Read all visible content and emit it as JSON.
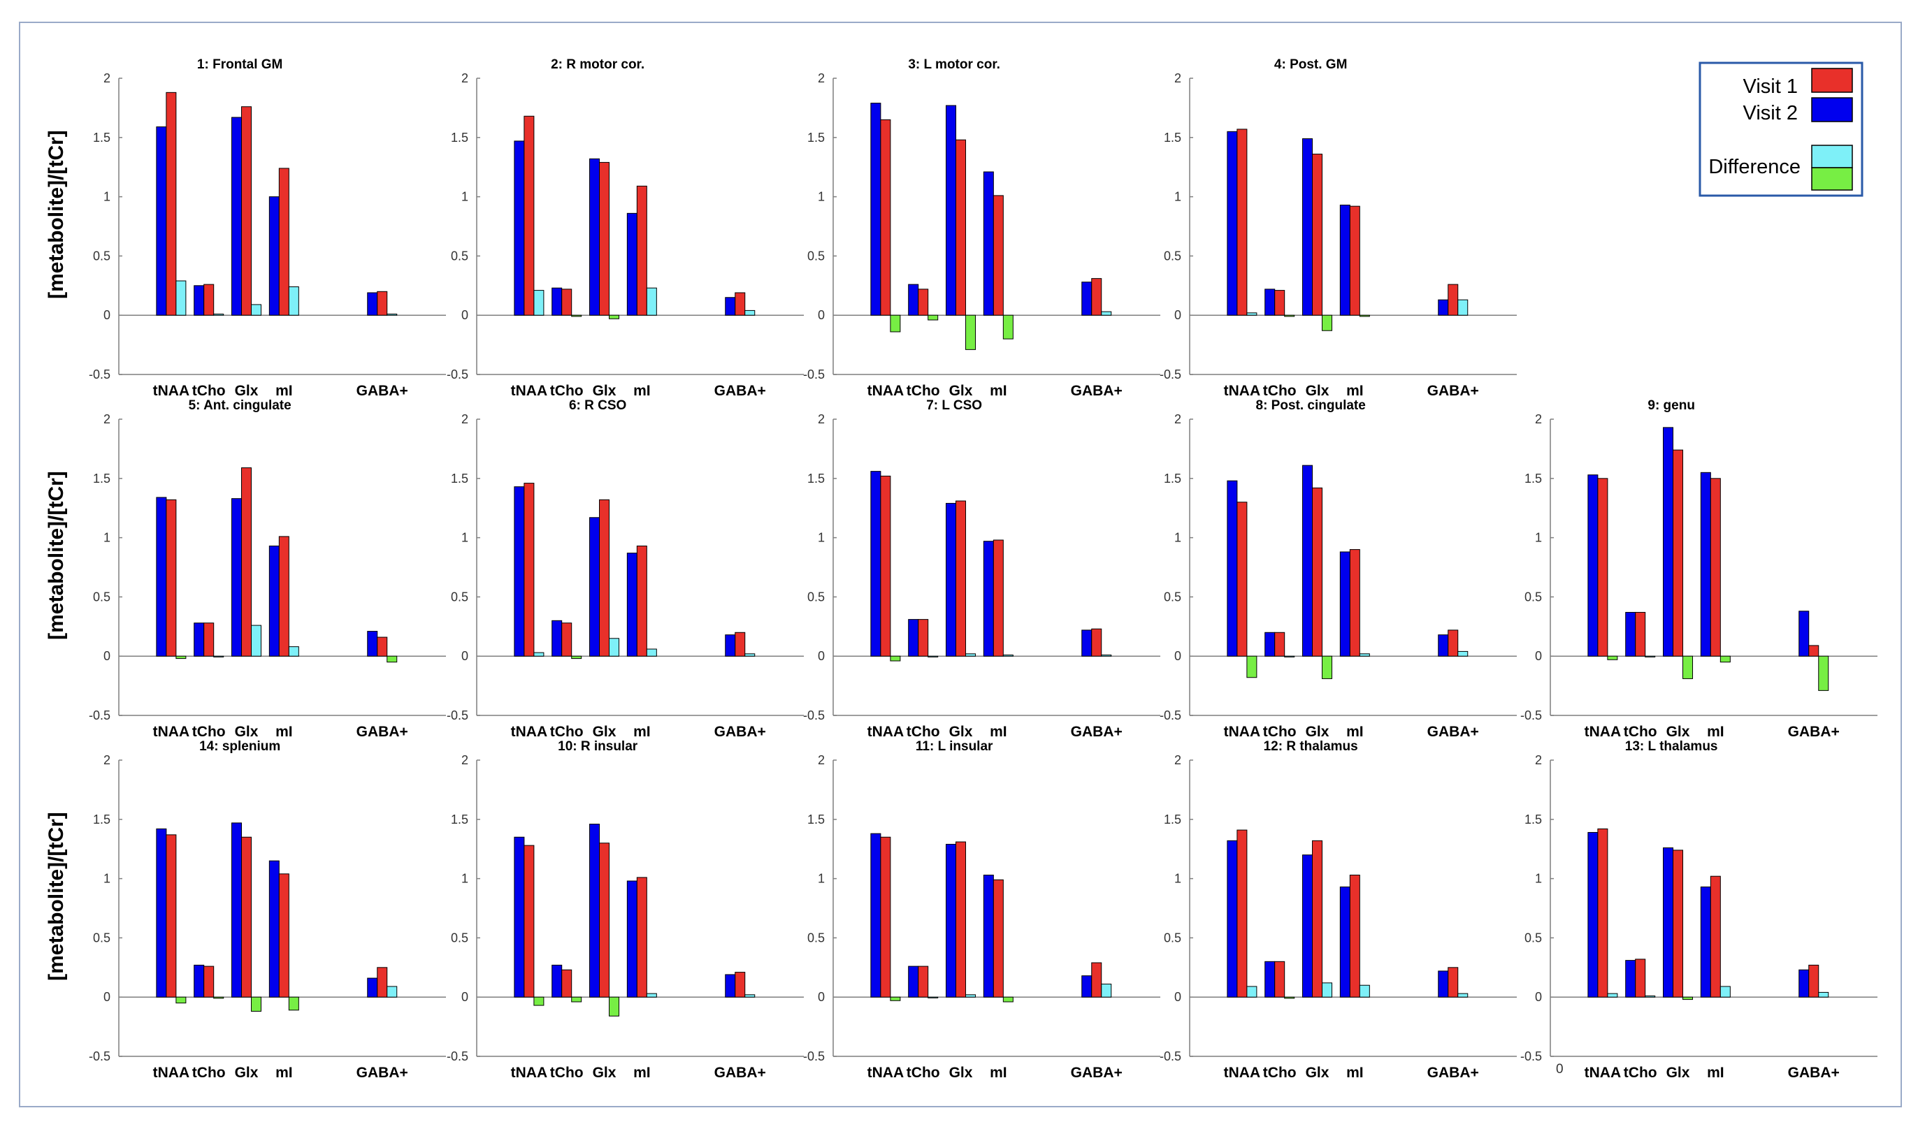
{
  "figure": {
    "y_axis_label": "[metabolite]/[tCr]",
    "categories": [
      "tNAA",
      "tCho",
      "Glx",
      "mI",
      "GABA+"
    ],
    "ylim": [
      -0.5,
      2
    ],
    "yticks": [
      -0.5,
      0,
      0.5,
      1,
      1.5,
      2
    ],
    "colors": {
      "visit1": "#e8302a",
      "visit2": "#0000ee",
      "difference_pos": "#7ef0f8",
      "difference_neg": "#77ee44",
      "axis": "#7f7f7f",
      "frame": "#9aaac8",
      "legend_border": "#2a5aa8"
    },
    "legend": {
      "visit1": "Visit 1",
      "visit2": "Visit 2",
      "difference": "Difference"
    },
    "extra_tick_label": "0"
  },
  "chart_data": [
    {
      "type": "bar",
      "title": "1: Frontal GM",
      "ylabel": "[metabolite]/[tCr]",
      "ylim": [
        -0.5,
        2
      ],
      "categories": [
        "tNAA",
        "tCho",
        "Glx",
        "mI",
        "GABA+"
      ],
      "series": [
        {
          "name": "Visit 2",
          "values": [
            1.59,
            0.25,
            1.67,
            1.0,
            0.19
          ]
        },
        {
          "name": "Visit 1",
          "values": [
            1.88,
            0.26,
            1.76,
            1.24,
            0.2
          ]
        },
        {
          "name": "Difference",
          "values": [
            0.29,
            0.01,
            0.09,
            0.24,
            0.01
          ]
        }
      ]
    },
    {
      "type": "bar",
      "title": "2: R motor cor.",
      "ylabel": "",
      "ylim": [
        -0.5,
        2
      ],
      "categories": [
        "tNAA",
        "tCho",
        "Glx",
        "mI",
        "GABA+"
      ],
      "series": [
        {
          "name": "Visit 2",
          "values": [
            1.47,
            0.23,
            1.32,
            0.86,
            0.15
          ]
        },
        {
          "name": "Visit 1",
          "values": [
            1.68,
            0.22,
            1.29,
            1.09,
            0.19
          ]
        },
        {
          "name": "Difference",
          "values": [
            0.21,
            -0.01,
            -0.03,
            0.23,
            0.04
          ]
        }
      ]
    },
    {
      "type": "bar",
      "title": "3: L motor cor.",
      "ylabel": "",
      "ylim": [
        -0.5,
        2
      ],
      "categories": [
        "tNAA",
        "tCho",
        "Glx",
        "mI",
        "GABA+"
      ],
      "series": [
        {
          "name": "Visit 2",
          "values": [
            1.79,
            0.26,
            1.77,
            1.21,
            0.28
          ]
        },
        {
          "name": "Visit 1",
          "values": [
            1.65,
            0.22,
            1.48,
            1.01,
            0.31
          ]
        },
        {
          "name": "Difference",
          "values": [
            -0.14,
            -0.04,
            -0.29,
            -0.2,
            0.03
          ]
        }
      ]
    },
    {
      "type": "bar",
      "title": "4: Post. GM",
      "ylabel": "",
      "ylim": [
        -0.5,
        2
      ],
      "categories": [
        "tNAA",
        "tCho",
        "Glx",
        "mI",
        "GABA+"
      ],
      "series": [
        {
          "name": "Visit 2",
          "values": [
            1.55,
            0.22,
            1.49,
            0.93,
            0.13
          ]
        },
        {
          "name": "Visit 1",
          "values": [
            1.57,
            0.21,
            1.36,
            0.92,
            0.26
          ]
        },
        {
          "name": "Difference",
          "values": [
            0.02,
            -0.01,
            -0.13,
            -0.01,
            0.13
          ]
        }
      ]
    },
    {
      "type": "bar",
      "title": "5: Ant. cingulate",
      "ylabel": "[metabolite]/[tCr]",
      "ylim": [
        -0.5,
        2
      ],
      "categories": [
        "tNAA",
        "tCho",
        "Glx",
        "mI",
        "GABA+"
      ],
      "series": [
        {
          "name": "Visit 2",
          "values": [
            1.34,
            0.28,
            1.33,
            0.93,
            0.21
          ]
        },
        {
          "name": "Visit 1",
          "values": [
            1.32,
            0.28,
            1.59,
            1.01,
            0.16
          ]
        },
        {
          "name": "Difference",
          "values": [
            -0.02,
            0.0,
            0.26,
            0.08,
            -0.05
          ]
        }
      ]
    },
    {
      "type": "bar",
      "title": "6: R CSO",
      "ylabel": "",
      "ylim": [
        -0.5,
        2
      ],
      "categories": [
        "tNAA",
        "tCho",
        "Glx",
        "mI",
        "GABA+"
      ],
      "series": [
        {
          "name": "Visit 2",
          "values": [
            1.43,
            0.3,
            1.17,
            0.87,
            0.18
          ]
        },
        {
          "name": "Visit 1",
          "values": [
            1.46,
            0.28,
            1.32,
            0.93,
            0.2
          ]
        },
        {
          "name": "Difference",
          "values": [
            0.03,
            -0.02,
            0.15,
            0.06,
            0.02
          ]
        }
      ]
    },
    {
      "type": "bar",
      "title": "7: L CSO",
      "ylabel": "",
      "ylim": [
        -0.5,
        2
      ],
      "categories": [
        "tNAA",
        "tCho",
        "Glx",
        "mI",
        "GABA+"
      ],
      "series": [
        {
          "name": "Visit 2",
          "values": [
            1.56,
            0.31,
            1.29,
            0.97,
            0.22
          ]
        },
        {
          "name": "Visit 1",
          "values": [
            1.52,
            0.31,
            1.31,
            0.98,
            0.23
          ]
        },
        {
          "name": "Difference",
          "values": [
            -0.04,
            0.0,
            0.02,
            0.01,
            0.01
          ]
        }
      ]
    },
    {
      "type": "bar",
      "title": "8: Post. cingulate",
      "ylabel": "",
      "ylim": [
        -0.5,
        2
      ],
      "categories": [
        "tNAA",
        "tCho",
        "Glx",
        "mI",
        "GABA+"
      ],
      "series": [
        {
          "name": "Visit 2",
          "values": [
            1.48,
            0.2,
            1.61,
            0.88,
            0.18
          ]
        },
        {
          "name": "Visit 1",
          "values": [
            1.3,
            0.2,
            1.42,
            0.9,
            0.22
          ]
        },
        {
          "name": "Difference",
          "values": [
            -0.18,
            0.0,
            -0.19,
            0.02,
            0.04
          ]
        }
      ]
    },
    {
      "type": "bar",
      "title": "9: genu",
      "ylabel": "",
      "ylim": [
        -0.5,
        2
      ],
      "categories": [
        "tNAA",
        "tCho",
        "Glx",
        "mI",
        "GABA+"
      ],
      "series": [
        {
          "name": "Visit 2",
          "values": [
            1.53,
            0.37,
            1.93,
            1.55,
            0.38
          ]
        },
        {
          "name": "Visit 1",
          "values": [
            1.5,
            0.37,
            1.74,
            1.5,
            0.09
          ]
        },
        {
          "name": "Difference",
          "values": [
            -0.03,
            0.0,
            -0.19,
            -0.05,
            -0.29
          ]
        }
      ]
    },
    {
      "type": "bar",
      "title": "14: splenium",
      "ylabel": "[metabolite]/[tCr]",
      "ylim": [
        -0.5,
        2
      ],
      "categories": [
        "tNAA",
        "tCho",
        "Glx",
        "mI",
        "GABA+"
      ],
      "series": [
        {
          "name": "Visit 2",
          "values": [
            1.42,
            0.27,
            1.47,
            1.15,
            0.16
          ]
        },
        {
          "name": "Visit 1",
          "values": [
            1.37,
            0.26,
            1.35,
            1.04,
            0.25
          ]
        },
        {
          "name": "Difference",
          "values": [
            -0.05,
            -0.01,
            -0.12,
            -0.11,
            0.09
          ]
        }
      ]
    },
    {
      "type": "bar",
      "title": "10: R insular",
      "ylabel": "",
      "ylim": [
        -0.5,
        2
      ],
      "categories": [
        "tNAA",
        "tCho",
        "Glx",
        "mI",
        "GABA+"
      ],
      "series": [
        {
          "name": "Visit 2",
          "values": [
            1.35,
            0.27,
            1.46,
            0.98,
            0.19
          ]
        },
        {
          "name": "Visit 1",
          "values": [
            1.28,
            0.23,
            1.3,
            1.01,
            0.21
          ]
        },
        {
          "name": "Difference",
          "values": [
            -0.07,
            -0.04,
            -0.16,
            0.03,
            0.02
          ]
        }
      ]
    },
    {
      "type": "bar",
      "title": "11: L insular",
      "ylabel": "",
      "ylim": [
        -0.5,
        2
      ],
      "categories": [
        "tNAA",
        "tCho",
        "Glx",
        "mI",
        "GABA+"
      ],
      "series": [
        {
          "name": "Visit 2",
          "values": [
            1.38,
            0.26,
            1.29,
            1.03,
            0.18
          ]
        },
        {
          "name": "Visit 1",
          "values": [
            1.35,
            0.26,
            1.31,
            0.99,
            0.29
          ]
        },
        {
          "name": "Difference",
          "values": [
            -0.03,
            0.0,
            0.02,
            -0.04,
            0.11
          ]
        }
      ]
    },
    {
      "type": "bar",
      "title": "12: R thalamus",
      "ylabel": "",
      "ylim": [
        -0.5,
        2
      ],
      "categories": [
        "tNAA",
        "tCho",
        "Glx",
        "mI",
        "GABA+"
      ],
      "series": [
        {
          "name": "Visit 2",
          "values": [
            1.32,
            0.3,
            1.2,
            0.93,
            0.22
          ]
        },
        {
          "name": "Visit 1",
          "values": [
            1.41,
            0.3,
            1.32,
            1.03,
            0.25
          ]
        },
        {
          "name": "Difference",
          "values": [
            0.09,
            -0.01,
            0.12,
            0.1,
            0.03
          ]
        }
      ]
    },
    {
      "type": "bar",
      "title": "13: L thalamus",
      "ylabel": "",
      "ylim": [
        -0.5,
        2
      ],
      "categories": [
        "tNAA",
        "tCho",
        "Glx",
        "mI",
        "GABA+"
      ],
      "series": [
        {
          "name": "Visit 2",
          "values": [
            1.39,
            0.31,
            1.26,
            0.93,
            0.23
          ]
        },
        {
          "name": "Visit 1",
          "values": [
            1.42,
            0.32,
            1.24,
            1.02,
            0.27
          ]
        },
        {
          "name": "Difference",
          "values": [
            0.03,
            0.01,
            -0.02,
            0.09,
            0.04
          ]
        }
      ]
    }
  ]
}
